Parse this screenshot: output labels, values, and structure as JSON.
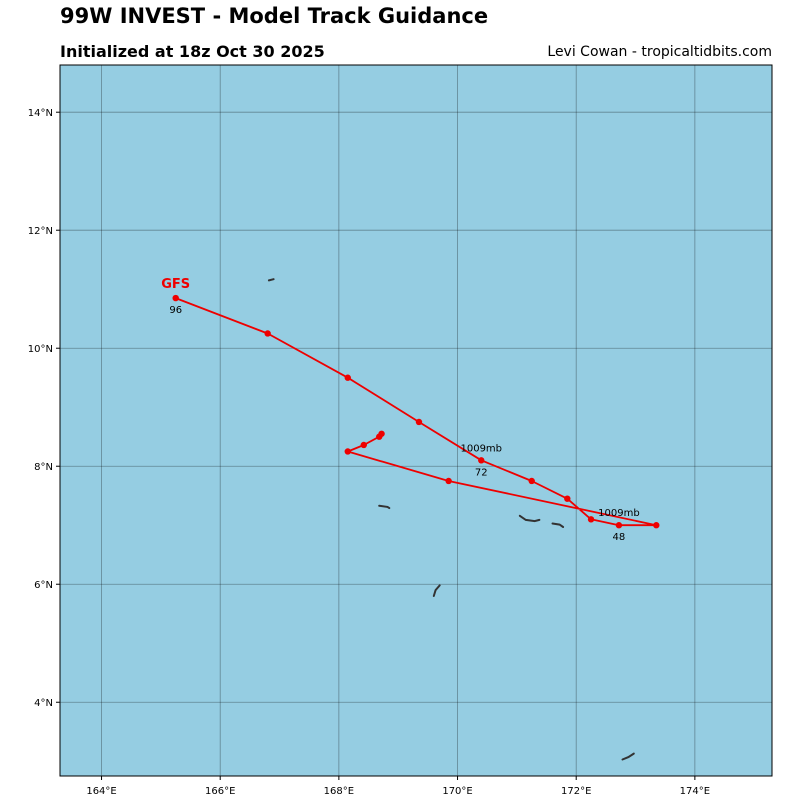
{
  "header": {
    "title": "99W INVEST - Model Track Guidance",
    "subtitle": "Initialized at 18z Oct 30 2025",
    "credit": "Levi Cowan - tropicaltidbits.com"
  },
  "map": {
    "ocean_color": "#95cde2",
    "lon_range": [
      163.3,
      175.3
    ],
    "lat_range": [
      2.75,
      14.8
    ],
    "lon_ticks": [
      {
        "value": 164,
        "label": "164°E"
      },
      {
        "value": 166,
        "label": "166°E"
      },
      {
        "value": 168,
        "label": "168°E"
      },
      {
        "value": 170,
        "label": "170°E"
      },
      {
        "value": 172,
        "label": "172°E"
      },
      {
        "value": 174,
        "label": "174°E"
      }
    ],
    "lat_ticks": [
      {
        "value": 4,
        "label": "4°N"
      },
      {
        "value": 6,
        "label": "6°N"
      },
      {
        "value": 8,
        "label": "8°N"
      },
      {
        "value": 10,
        "label": "10°N"
      },
      {
        "value": 12,
        "label": "12°N"
      },
      {
        "value": 14,
        "label": "14°N"
      }
    ],
    "islands": [
      [
        [
          166.82,
          11.15
        ],
        [
          166.9,
          11.17
        ]
      ],
      [
        [
          168.68,
          7.33
        ],
        [
          168.82,
          7.31
        ],
        [
          168.85,
          7.29
        ]
      ],
      [
        [
          171.05,
          7.16
        ],
        [
          171.15,
          7.09
        ],
        [
          171.3,
          7.07
        ],
        [
          171.38,
          7.09
        ]
      ],
      [
        [
          171.6,
          7.03
        ],
        [
          171.72,
          7.01
        ],
        [
          171.78,
          6.97
        ]
      ],
      [
        [
          169.6,
          5.8
        ],
        [
          169.63,
          5.9
        ],
        [
          169.7,
          5.98
        ]
      ],
      [
        [
          172.78,
          3.03
        ],
        [
          172.88,
          3.07
        ],
        [
          172.97,
          3.13
        ]
      ]
    ],
    "track": {
      "model": "GFS",
      "color": "#ee0000",
      "points": [
        [
          168.72,
          8.55
        ],
        [
          168.68,
          8.5
        ],
        [
          168.42,
          8.36
        ],
        [
          168.15,
          8.25
        ],
        [
          169.85,
          7.75
        ],
        [
          173.35,
          7.0
        ],
        [
          172.72,
          7.0
        ],
        [
          172.25,
          7.1
        ],
        [
          171.85,
          7.45
        ],
        [
          171.25,
          7.75
        ],
        [
          170.4,
          8.1
        ],
        [
          169.35,
          8.75
        ],
        [
          168.15,
          9.5
        ],
        [
          166.8,
          10.25
        ],
        [
          165.25,
          10.85
        ]
      ],
      "model_label": {
        "text": "GFS",
        "lon": 165.25,
        "lat": 10.85
      },
      "hour_labels": [
        {
          "text": "96",
          "lon": 165.25,
          "lat": 10.85
        },
        {
          "text": "72",
          "lon": 170.4,
          "lat": 8.1
        },
        {
          "text": "48",
          "lon": 172.72,
          "lat": 7.0
        }
      ],
      "pressure_labels": [
        {
          "text": "1009mb",
          "lon": 170.4,
          "lat": 8.1
        },
        {
          "text": "1009mb",
          "lon": 172.72,
          "lat": 7.0
        }
      ]
    }
  }
}
